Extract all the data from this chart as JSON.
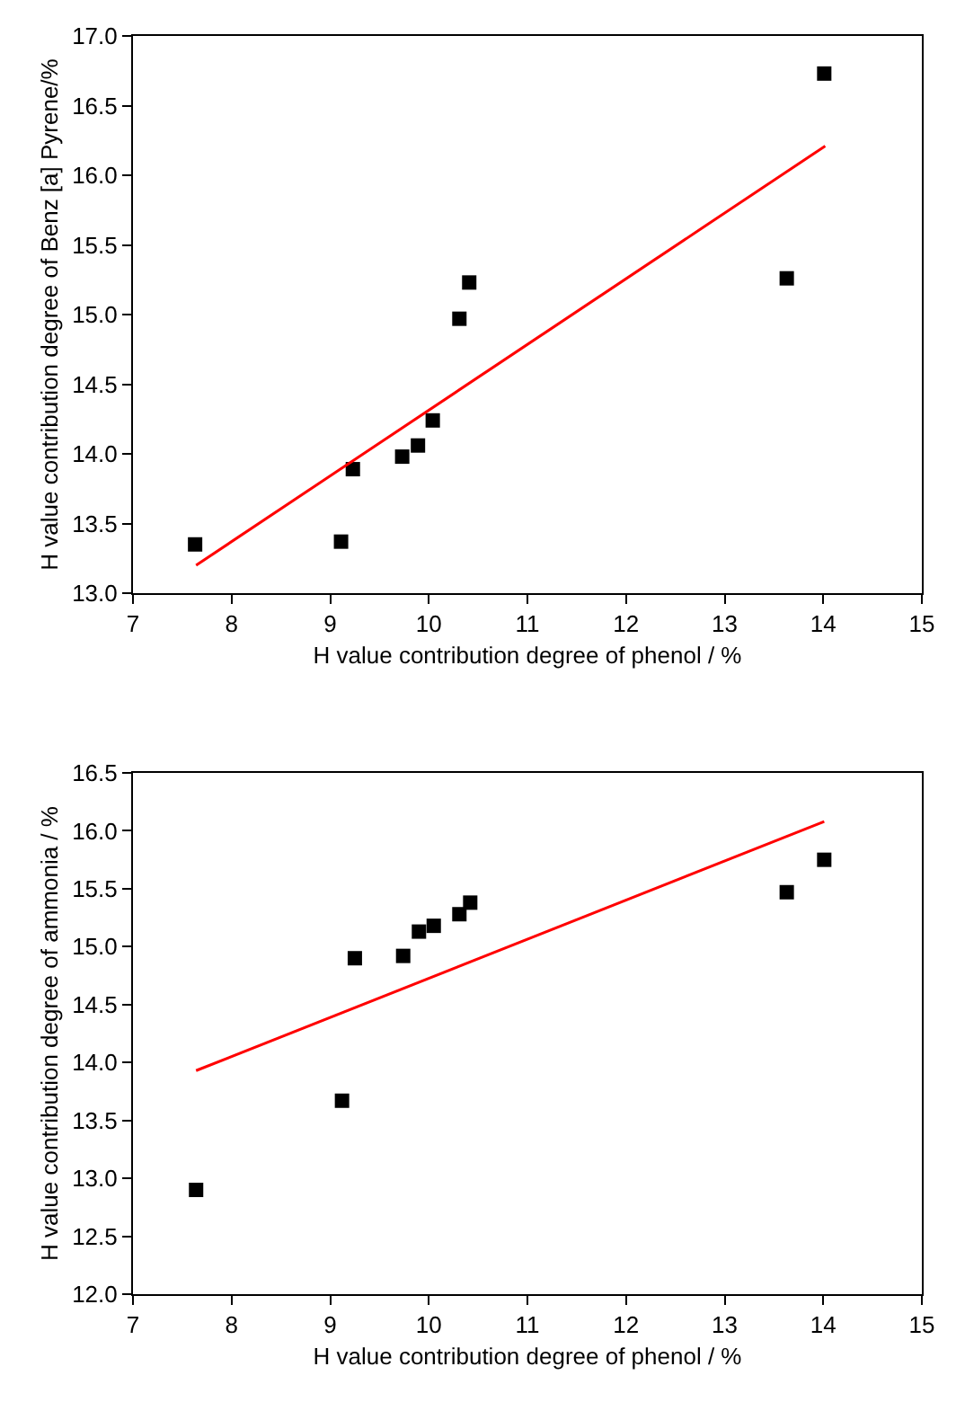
{
  "chart_data": [
    {
      "type": "scatter",
      "xlabel": "H value contribution degree of phenol / %",
      "ylabel": "H value contribution degree of Benz [a] Pyrene/%",
      "xlim": [
        7,
        15
      ],
      "xticks": [
        7,
        8,
        9,
        10,
        11,
        12,
        13,
        14,
        15
      ],
      "ylim": [
        13.0,
        17.0
      ],
      "yticks": [
        {
          "value": 13,
          "label": "13.0"
        },
        13.5,
        {
          "value": 14,
          "label": "14.0"
        },
        14.5,
        {
          "value": 15,
          "label": "15.0"
        },
        15.5,
        {
          "value": 16,
          "label": "16.0"
        },
        16.5,
        {
          "value": 17,
          "label": "17.0"
        }
      ],
      "grid": false,
      "series": [
        {
          "type": "scatter",
          "marker": "square",
          "color": "#000000",
          "x": [
            7.63,
            9.11,
            9.23,
            9.73,
            9.89,
            10.04,
            10.31,
            10.41,
            13.63,
            14.01
          ],
          "values": [
            13.35,
            13.37,
            13.89,
            13.98,
            14.06,
            14.24,
            14.97,
            15.23,
            15.26,
            16.73
          ]
        },
        {
          "type": "line",
          "marker": "none",
          "line_style": "solid",
          "color": "#ff0000",
          "x": [
            7.64,
            14.02
          ],
          "values": [
            13.2,
            16.21
          ]
        }
      ]
    },
    {
      "type": "scatter",
      "xlabel": "H value contribution degree of phenol / %",
      "ylabel": "H value contribution degree of ammonia / %",
      "xlim": [
        7,
        15
      ],
      "xticks": [
        7,
        8,
        9,
        10,
        11,
        12,
        13,
        14,
        15
      ],
      "ylim": [
        12.0,
        16.5
      ],
      "yticks": [
        {
          "value": 12,
          "label": "12.0"
        },
        12.5,
        {
          "value": 13,
          "label": "13.0"
        },
        13.5,
        {
          "value": 14,
          "label": "14.0"
        },
        14.5,
        {
          "value": 15,
          "label": "15.0"
        },
        15.5,
        {
          "value": 16,
          "label": "16.0"
        },
        16.5
      ],
      "grid": false,
      "series": [
        {
          "type": "scatter",
          "marker": "square",
          "color": "#000000",
          "x": [
            7.64,
            9.12,
            9.25,
            9.74,
            9.9,
            10.05,
            10.31,
            10.42,
            13.63,
            14.01
          ],
          "values": [
            12.9,
            13.67,
            14.9,
            14.92,
            15.13,
            15.18,
            15.28,
            15.38,
            15.47,
            15.75
          ]
        },
        {
          "type": "line",
          "marker": "none",
          "line_style": "solid",
          "color": "#ff0000",
          "x": [
            7.64,
            14.01
          ],
          "values": [
            13.93,
            16.08
          ]
        }
      ]
    }
  ]
}
